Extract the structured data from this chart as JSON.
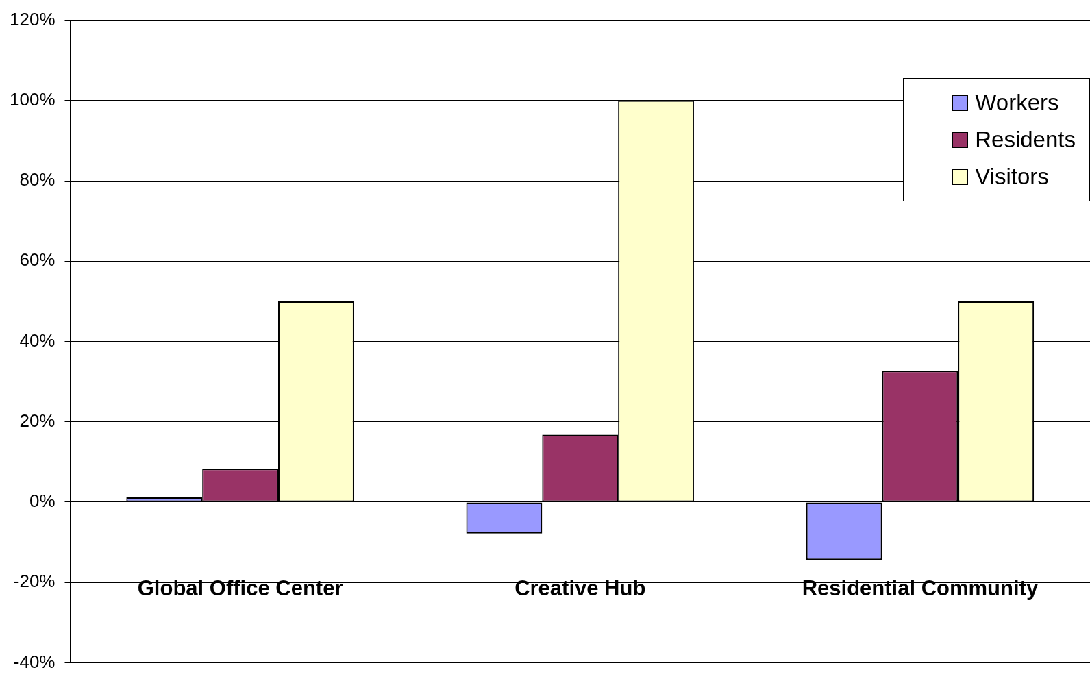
{
  "chart_data": {
    "type": "bar",
    "categories": [
      "Global Office Center",
      "Creative Hub",
      "Residential Community"
    ],
    "series": [
      {
        "name": "Workers",
        "color": "#9999ff",
        "values": [
          1.2,
          -7.8,
          -14.4
        ]
      },
      {
        "name": "Residents",
        "color": "#993366",
        "values": [
          8.3,
          16.8,
          32.7
        ]
      },
      {
        "name": "Visitors",
        "color": "#ffffcc",
        "values": [
          50,
          100,
          50
        ]
      }
    ],
    "ylim": [
      -40,
      120
    ],
    "yticks": [
      {
        "value": -40,
        "label": "-40%"
      },
      {
        "value": -20,
        "label": "-20%"
      },
      {
        "value": 0,
        "label": "0%"
      },
      {
        "value": 20,
        "label": "20%"
      },
      {
        "value": 40,
        "label": "40%"
      },
      {
        "value": 60,
        "label": "60%"
      },
      {
        "value": 80,
        "label": "80%"
      },
      {
        "value": 100,
        "label": "100%"
      },
      {
        "value": 120,
        "label": "120%"
      }
    ],
    "grid": "y",
    "legend": "top right"
  }
}
